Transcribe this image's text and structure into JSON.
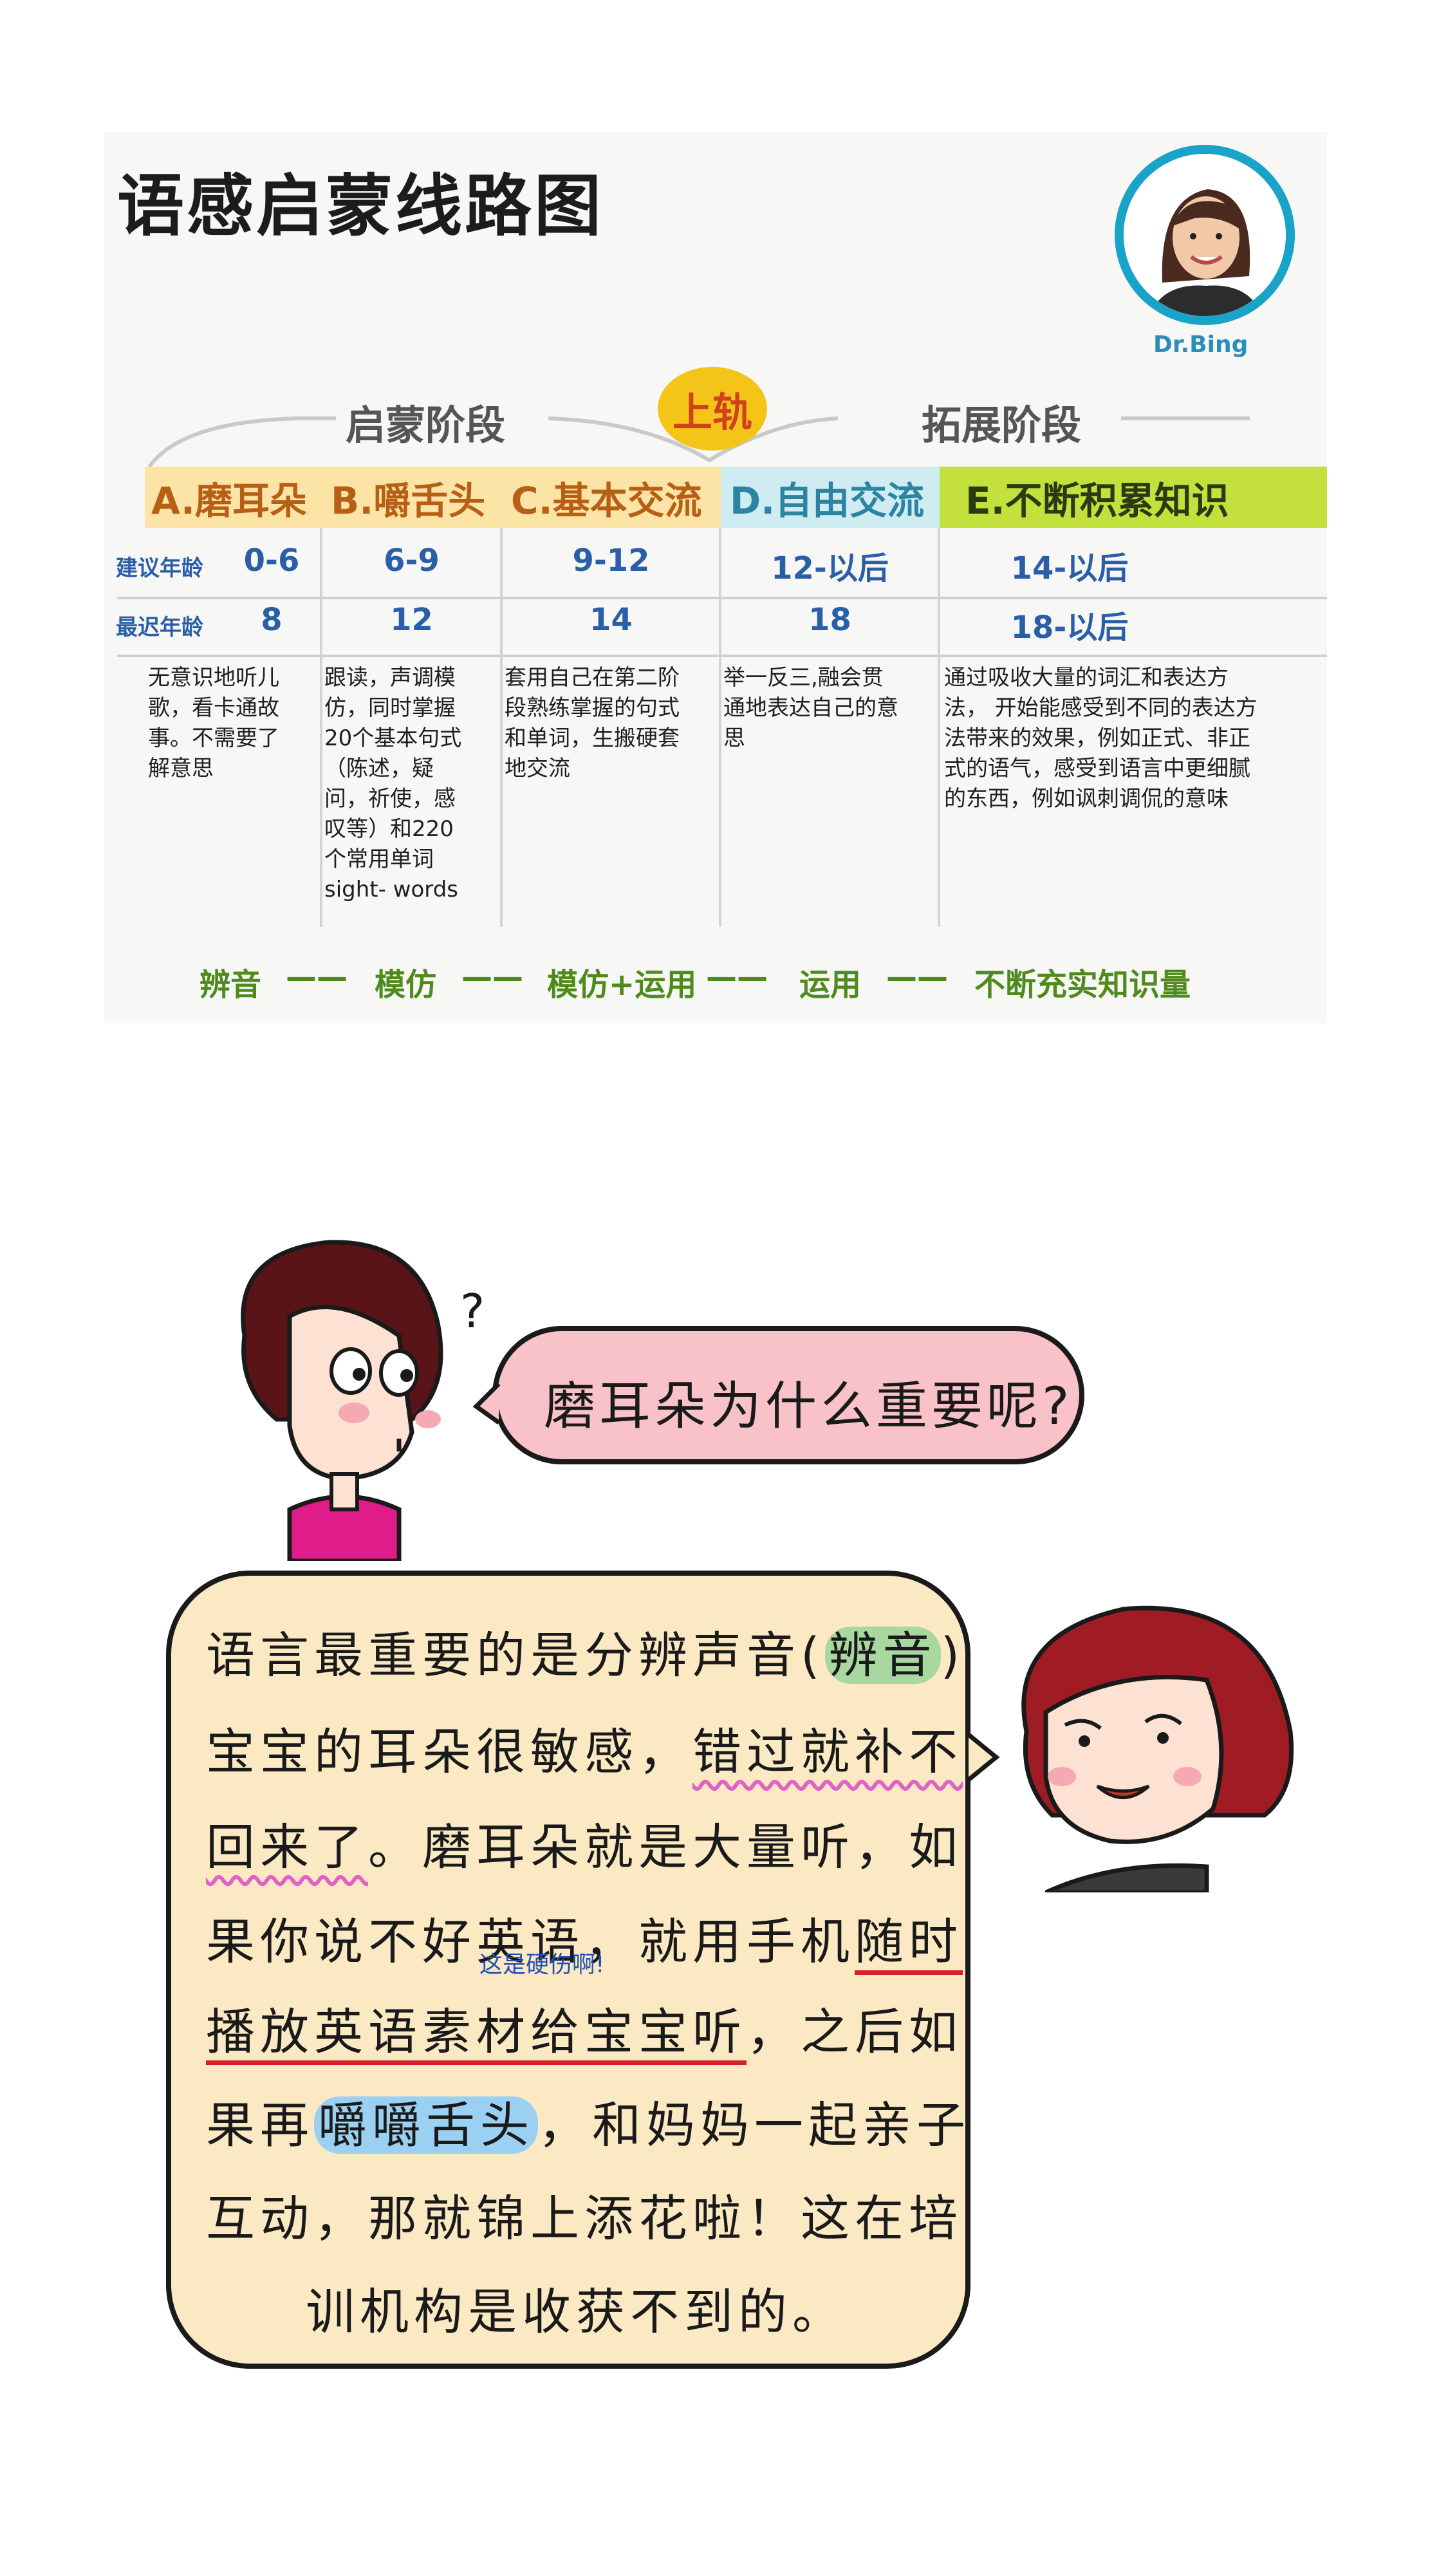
{
  "roadmap": {
    "title": "语感启蒙线路图",
    "avatar_name": "Dr.Bing",
    "stage_left": "启蒙阶段",
    "stage_mid": "上轨",
    "stage_right": "拓展阶段",
    "headers": [
      "A.磨耳朵",
      "B.嚼舌头",
      "C.基本交流",
      "D.自由交流",
      "E.不断积累知识"
    ],
    "row1_label": "建议年龄",
    "row1_values": [
      "0-6",
      "6-9",
      "9-12",
      "12-以后",
      "14-以后"
    ],
    "row2_label": "最迟年龄",
    "row2_values": [
      "8",
      "12",
      "14",
      "18",
      "18-以后"
    ],
    "descriptions": [
      [
        "无意识地听儿",
        "歌，看卡通故",
        "事。不需要了",
        "解意思"
      ],
      [
        "跟读，声调模",
        "仿，同时掌握",
        "20个基本句式",
        "（陈述，疑",
        "问，祈使，感",
        "叹等）和220",
        "个常用单词",
        "sight- words"
      ],
      [
        "套用自己在第二阶",
        "段熟练掌握的句式",
        "和单词，生搬硬套",
        "地交流"
      ],
      [
        "举一反三,融会贯",
        "通地表达自己的意",
        "思"
      ],
      [
        "通过吸收大量的词汇和表达方",
        "法， 开始能感受到不同的表达方",
        "法带来的效果，例如正式、非正",
        "式的语气，感受到语言中更细腻",
        "的东西，例如讽刺调侃的意味"
      ]
    ],
    "flow": [
      "辨音",
      "——",
      "模仿",
      "——",
      "模仿+运用",
      "——",
      "运用",
      "——",
      "不断充实知识量"
    ]
  },
  "comic": {
    "question": "磨耳朵为什么重要呢?",
    "question_mark": "?",
    "note": "这是硬伤啊!",
    "lines": {
      "l1a": "语言最重要的是分辨声音(",
      "l1b": "辨音",
      "l1c": ")",
      "l2a": "宝宝的耳朵很敏感，",
      "l2b": "错过就补不",
      "l3a": "回来了",
      "l3b": "。磨耳朵就是大量听，如",
      "l4a": "果你说不好英语，就用手机",
      "l4b": "随时",
      "l5a": "播放英语素材给宝宝听",
      "l5b": "，之后如",
      "l6a": "果再",
      "l6b": "嚼嚼舌头",
      "l6c": "，和妈妈一起亲子",
      "l7": "互动，那就锦上添花啦！这在培",
      "l8": "训机构是收获不到的。"
    }
  },
  "colors": {
    "header_warm": "#fbe4a6",
    "header_blue": "#cfecf3",
    "header_green": "#c3e03c",
    "rail_yellow": "#f4c419",
    "bubble_pink": "#f9c2c8",
    "bubble_cream": "#fbe9c4",
    "flow_green": "#4f8a1c"
  }
}
